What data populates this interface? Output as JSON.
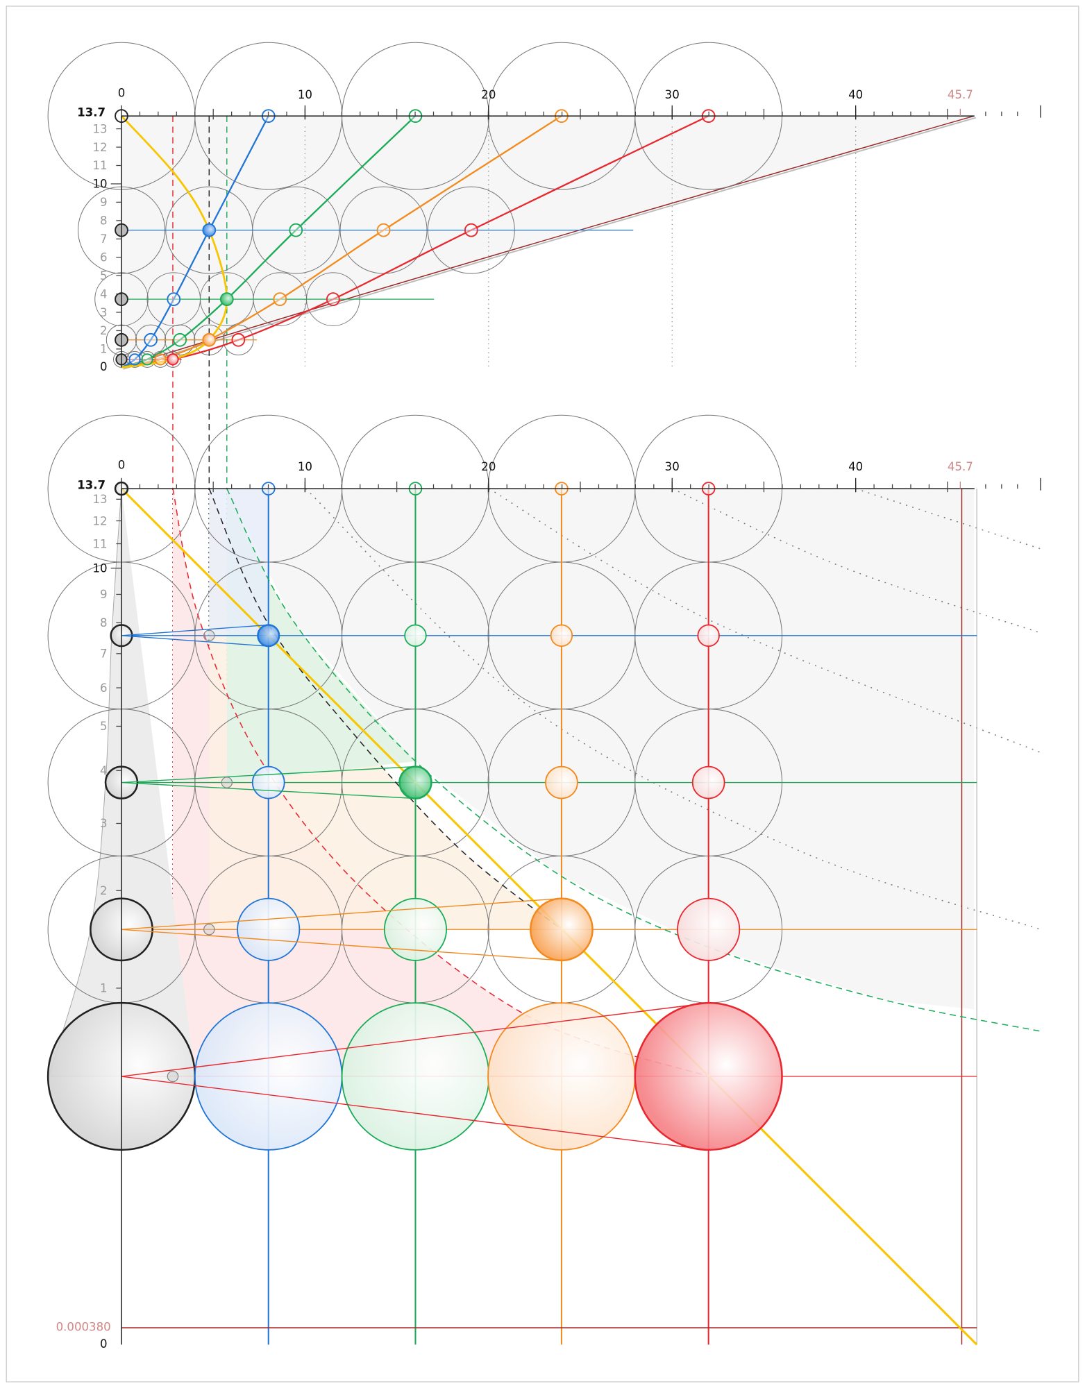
{
  "top_axis": {
    "x_ticks": [
      0,
      10,
      20,
      30,
      40
    ],
    "x_max": 45.7,
    "y_ticks": [
      1,
      2,
      3,
      4,
      5,
      6,
      7,
      8,
      9,
      10,
      11,
      12,
      13
    ],
    "y_max": 13.7,
    "y_min": 0
  },
  "bottom_axis": {
    "x_ticks": [
      0,
      10,
      20,
      30,
      40
    ],
    "x_max": 45.7,
    "y_ticks": [
      1,
      2,
      3,
      4,
      5,
      6,
      7,
      8,
      9,
      10,
      11,
      12,
      13
    ],
    "y_max": 13.7,
    "y_min": 0,
    "y_floor": {
      "value": 0.00038,
      "label": "0.000380"
    }
  }
}
